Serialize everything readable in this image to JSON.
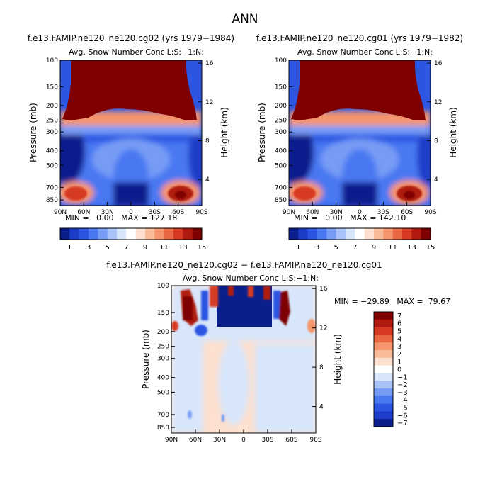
{
  "page_title": "ANN",
  "chart_data": [
    {
      "type": "heatmap",
      "title": "f.e13.FAMIP.ne120_ne120.cg02 (yrs 1979−1984)",
      "subtitle": "Avg. Snow Number Conc",
      "units_note": "L:S:−1:N:",
      "ylabel": "Pressure (mb)",
      "y2label": "Height (km)",
      "xticks": [
        "90N",
        "60N",
        "30N",
        "0",
        "30S",
        "60S",
        "90S"
      ],
      "yticks": [
        "100",
        "150",
        "200",
        "250",
        "300",
        "400",
        "500",
        "700",
        "850"
      ],
      "y2ticks": [
        "16",
        "12",
        "8",
        "4"
      ],
      "min_max_text": "MIN =   0.00   MAX = 127.18",
      "min": 0.0,
      "max": 127.18,
      "colorbar_labels": [
        "1",
        "3",
        "5",
        "7",
        "9",
        "11",
        "13",
        "15"
      ],
      "colorbar_colors": [
        "#0a1e8c",
        "#1c3cc8",
        "#2c55e2",
        "#4a78f2",
        "#779cf5",
        "#a9c3f8",
        "#d8e6fb",
        "#ffffff",
        "#fde0cf",
        "#f9bc9b",
        "#f4956d",
        "#ea6743",
        "#d63a23",
        "#b01a10",
        "#7e0000"
      ]
    },
    {
      "type": "heatmap",
      "title": "f.e13.FAMIP.ne120_ne120.cg01 (yrs 1979−1982)",
      "subtitle": "Avg. Snow Number Conc",
      "units_note": "L:S:−1:N:",
      "ylabel": "Pressure (mb)",
      "y2label": "Height (km)",
      "xticks": [
        "90N",
        "60N",
        "30N",
        "0",
        "30S",
        "60S",
        "90S"
      ],
      "yticks": [
        "100",
        "150",
        "200",
        "250",
        "300",
        "400",
        "500",
        "700",
        "850"
      ],
      "y2ticks": [
        "16",
        "12",
        "8",
        "4"
      ],
      "min_max_text": "MIN =   0.00   MAX = 142.10",
      "min": 0.0,
      "max": 142.1,
      "colorbar_labels": [
        "1",
        "3",
        "5",
        "7",
        "9",
        "11",
        "13",
        "15"
      ],
      "colorbar_colors": [
        "#0a1e8c",
        "#1c3cc8",
        "#2c55e2",
        "#4a78f2",
        "#779cf5",
        "#a9c3f8",
        "#d8e6fb",
        "#ffffff",
        "#fde0cf",
        "#f9bc9b",
        "#f4956d",
        "#ea6743",
        "#d63a23",
        "#b01a10",
        "#7e0000"
      ]
    },
    {
      "type": "heatmap",
      "title": "f.e13.FAMIP.ne120_ne120.cg02 − f.e13.FAMIP.ne120_ne120.cg01",
      "subtitle": "Avg. Snow Number Conc",
      "units_note": "L:S:−1:N:",
      "ylabel": "Pressure (mb)",
      "y2label": "Height (km)",
      "xticks": [
        "90N",
        "60N",
        "30N",
        "0",
        "30S",
        "60S",
        "90S"
      ],
      "yticks": [
        "100",
        "150",
        "200",
        "250",
        "300",
        "400",
        "500",
        "700",
        "850"
      ],
      "y2ticks": [
        "16",
        "12",
        "8",
        "4"
      ],
      "min_max_text": "MIN = −29.89   MAX =  79.67",
      "min": -29.89,
      "max": 79.67,
      "colorbar_labels": [
        "7",
        "6",
        "5",
        "4",
        "3",
        "2",
        "1",
        "0",
        "−1",
        "−2",
        "−3",
        "−4",
        "−5",
        "−6",
        "−7"
      ],
      "colorbar_colors": [
        "#7e0000",
        "#b01a10",
        "#d63a23",
        "#ea6743",
        "#f4956d",
        "#f9bc9b",
        "#fde0cf",
        "#ffffff",
        "#d8e6fb",
        "#a9c3f8",
        "#779cf5",
        "#4a78f2",
        "#2c55e2",
        "#1c3cc8",
        "#0a1e8c"
      ]
    }
  ]
}
